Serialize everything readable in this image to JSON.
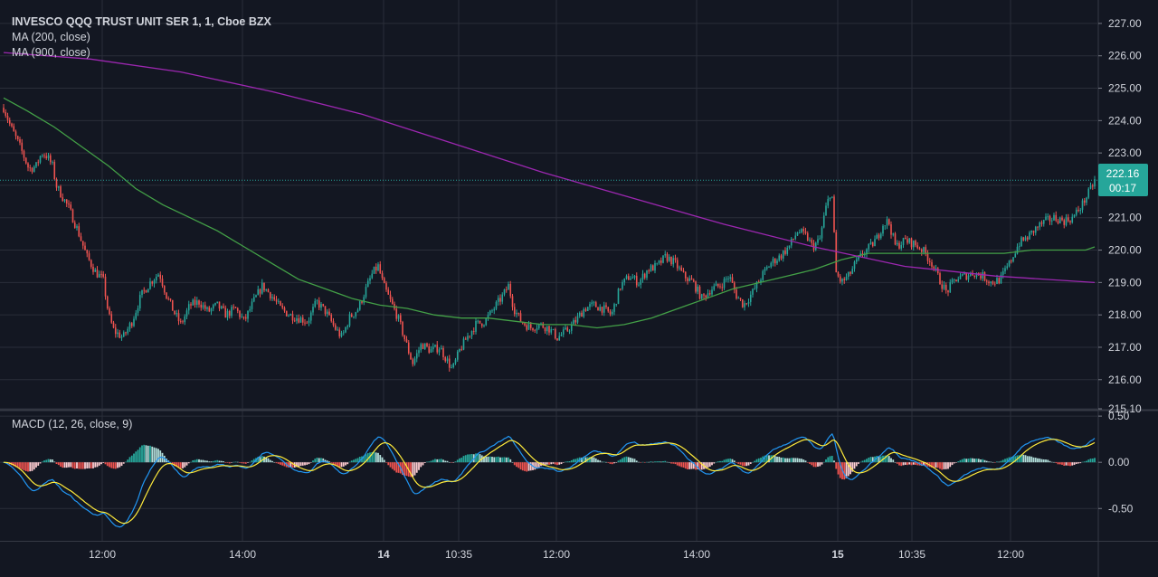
{
  "legend": {
    "symbol_title": "INVESCO QQQ TRUST UNIT SER 1, 1, Cboe BZX",
    "ma200_label": "MA (200, close)",
    "ma900_label": "MA (900, close)",
    "macd_label": "MACD (12, 26, close, 9)"
  },
  "price_tag": {
    "price": "222.16",
    "countdown": "00:17"
  },
  "colors": {
    "background": "#131722",
    "grid": "#2a2e39",
    "up": "#26a69a",
    "down": "#ef5350",
    "ma200": "#43a047",
    "ma900": "#9c27b0",
    "macd_line": "#2196f3",
    "signal_line": "#ffeb3b",
    "price_tag": "#26a69a"
  },
  "chart_data": [
    {
      "type": "candlestick",
      "title": "INVESCO QQQ TRUST UNIT SER 1, 1, Cboe BZX",
      "x_ticks": [
        "12:00",
        "14:00",
        "14",
        "10:35",
        "12:00",
        "14:00",
        "15",
        "10:35",
        "12:00"
      ],
      "x_ticks_bold": [
        false,
        false,
        true,
        false,
        false,
        false,
        true,
        false,
        false
      ],
      "y_ticks": [
        "227.00",
        "226.00",
        "225.00",
        "224.00",
        "223.00",
        "222.00",
        "221.00",
        "220.00",
        "219.00",
        "218.00",
        "217.00",
        "216.00",
        "215.10"
      ],
      "ylim": [
        215.1,
        227.5
      ],
      "last_price": 222.16,
      "close_path": [
        [
          0,
          224.7
        ],
        [
          12,
          223.8
        ],
        [
          22,
          223.2
        ],
        [
          32,
          222.5
        ],
        [
          40,
          222.6
        ],
        [
          46,
          223.0
        ],
        [
          52,
          222.9
        ],
        [
          58,
          222.6
        ],
        [
          62,
          222.0
        ],
        [
          68,
          221.7
        ],
        [
          76,
          221.3
        ],
        [
          86,
          220.6
        ],
        [
          96,
          219.8
        ],
        [
          106,
          219.3
        ],
        [
          114,
          219.1
        ],
        [
          120,
          218.0
        ],
        [
          126,
          217.5
        ],
        [
          136,
          217.3
        ],
        [
          146,
          217.8
        ],
        [
          156,
          218.6
        ],
        [
          166,
          219.0
        ],
        [
          176,
          219.3
        ],
        [
          184,
          218.6
        ],
        [
          192,
          218.1
        ],
        [
          200,
          217.7
        ],
        [
          210,
          218.3
        ],
        [
          220,
          218.4
        ],
        [
          230,
          218.1
        ],
        [
          240,
          218.3
        ],
        [
          250,
          218.0
        ],
        [
          260,
          218.2
        ],
        [
          270,
          217.8
        ],
        [
          280,
          218.4
        ],
        [
          290,
          218.9
        ],
        [
          300,
          218.6
        ],
        [
          310,
          218.2
        ],
        [
          320,
          218.0
        ],
        [
          330,
          217.9
        ],
        [
          340,
          217.8
        ],
        [
          350,
          218.4
        ],
        [
          360,
          218.1
        ],
        [
          370,
          217.6
        ],
        [
          378,
          217.3
        ],
        [
          386,
          217.9
        ],
        [
          396,
          218.2
        ],
        [
          406,
          218.9
        ],
        [
          412,
          219.3
        ],
        [
          418,
          219.5
        ],
        [
          424,
          218.9
        ],
        [
          432,
          218.4
        ],
        [
          440,
          217.9
        ],
        [
          448,
          217.2
        ],
        [
          456,
          216.5
        ],
        [
          466,
          217.1
        ],
        [
          476,
          216.9
        ],
        [
          486,
          217.0
        ],
        [
          492,
          216.7
        ],
        [
          500,
          216.3
        ],
        [
          508,
          216.9
        ],
        [
          516,
          217.3
        ],
        [
          526,
          217.7
        ],
        [
          536,
          217.8
        ],
        [
          546,
          218.2
        ],
        [
          556,
          218.6
        ],
        [
          562,
          218.9
        ],
        [
          568,
          218.2
        ],
        [
          576,
          217.8
        ],
        [
          586,
          217.6
        ],
        [
          596,
          217.7
        ],
        [
          606,
          217.6
        ],
        [
          616,
          217.3
        ],
        [
          626,
          217.5
        ],
        [
          636,
          217.8
        ],
        [
          646,
          218.2
        ],
        [
          656,
          218.3
        ],
        [
          666,
          218.2
        ],
        [
          676,
          218.0
        ],
        [
          686,
          218.9
        ],
        [
          696,
          219.2
        ],
        [
          706,
          219.0
        ],
        [
          716,
          219.4
        ],
        [
          726,
          219.5
        ],
        [
          736,
          219.8
        ],
        [
          746,
          219.6
        ],
        [
          756,
          219.2
        ],
        [
          766,
          219.0
        ],
        [
          776,
          218.5
        ],
        [
          786,
          218.8
        ],
        [
          796,
          218.9
        ],
        [
          806,
          219.2
        ],
        [
          814,
          218.6
        ],
        [
          822,
          218.3
        ],
        [
          832,
          218.7
        ],
        [
          842,
          219.2
        ],
        [
          852,
          219.6
        ],
        [
          862,
          219.8
        ],
        [
          872,
          220.1
        ],
        [
          882,
          220.6
        ],
        [
          892,
          220.4
        ],
        [
          898,
          220.1
        ],
        [
          906,
          220.3
        ],
        [
          912,
          221.2
        ],
        [
          918,
          221.8
        ],
        [
          920,
          221.6
        ],
        [
          924,
          219.3
        ],
        [
          930,
          219.0
        ],
        [
          938,
          219.2
        ],
        [
          946,
          219.6
        ],
        [
          954,
          219.9
        ],
        [
          962,
          220.1
        ],
        [
          970,
          220.4
        ],
        [
          976,
          220.8
        ],
        [
          982,
          220.9
        ],
        [
          990,
          220.1
        ],
        [
          1000,
          220.3
        ],
        [
          1010,
          220.2
        ],
        [
          1020,
          220.0
        ],
        [
          1030,
          219.6
        ],
        [
          1038,
          219.1
        ],
        [
          1046,
          218.7
        ],
        [
          1056,
          219.1
        ],
        [
          1066,
          219.2
        ],
        [
          1076,
          219.3
        ],
        [
          1086,
          219.2
        ],
        [
          1096,
          219.0
        ],
        [
          1106,
          219.1
        ],
        [
          1116,
          219.6
        ],
        [
          1126,
          220.2
        ],
        [
          1136,
          220.4
        ],
        [
          1146,
          220.7
        ],
        [
          1156,
          220.9
        ],
        [
          1166,
          221.0
        ],
        [
          1176,
          220.9
        ],
        [
          1186,
          221.0
        ],
        [
          1196,
          221.4
        ],
        [
          1206,
          221.9
        ],
        [
          1210,
          222.16
        ]
      ],
      "series": [
        {
          "name": "MA (200, close)",
          "color": "#43a047",
          "points": [
            [
              4,
              224.7
            ],
            [
              30,
              224.3
            ],
            [
              60,
              223.8
            ],
            [
              90,
              223.2
            ],
            [
              120,
              222.6
            ],
            [
              150,
              221.9
            ],
            [
              180,
              221.4
            ],
            [
              210,
              221.0
            ],
            [
              240,
              220.6
            ],
            [
              270,
              220.1
            ],
            [
              300,
              219.6
            ],
            [
              330,
              219.1
            ],
            [
              360,
              218.8
            ],
            [
              390,
              218.5
            ],
            [
              420,
              218.3
            ],
            [
              450,
              218.2
            ],
            [
              480,
              218.0
            ],
            [
              510,
              217.9
            ],
            [
              540,
              217.9
            ],
            [
              570,
              217.8
            ],
            [
              600,
              217.7
            ],
            [
              630,
              217.7
            ],
            [
              660,
              217.6
            ],
            [
              690,
              217.7
            ],
            [
              720,
              217.9
            ],
            [
              750,
              218.2
            ],
            [
              780,
              218.5
            ],
            [
              810,
              218.8
            ],
            [
              840,
              219.0
            ],
            [
              870,
              219.2
            ],
            [
              900,
              219.4
            ],
            [
              930,
              219.7
            ],
            [
              960,
              219.9
            ],
            [
              990,
              219.9
            ],
            [
              1020,
              219.9
            ],
            [
              1050,
              219.9
            ],
            [
              1080,
              219.9
            ],
            [
              1110,
              219.9
            ],
            [
              1140,
              220.0
            ],
            [
              1170,
              220.0
            ],
            [
              1200,
              220.0
            ],
            [
              1210,
              220.1
            ]
          ]
        },
        {
          "name": "MA (900, close)",
          "color": "#9c27b0",
          "points": [
            [
              4,
              226.1
            ],
            [
              100,
              225.9
            ],
            [
              200,
              225.5
            ],
            [
              300,
              224.9
            ],
            [
              400,
              224.2
            ],
            [
              500,
              223.3
            ],
            [
              600,
              222.4
            ],
            [
              700,
              221.6
            ],
            [
              800,
              220.8
            ],
            [
              900,
              220.1
            ],
            [
              1000,
              219.5
            ],
            [
              1100,
              219.2
            ],
            [
              1210,
              219.0
            ]
          ]
        }
      ]
    },
    {
      "type": "macd",
      "title": "MACD (12, 26, close, 9)",
      "y_ticks": [
        "0.50",
        "0.00",
        "-0.50"
      ],
      "ylim": [
        -0.85,
        0.55
      ]
    }
  ]
}
